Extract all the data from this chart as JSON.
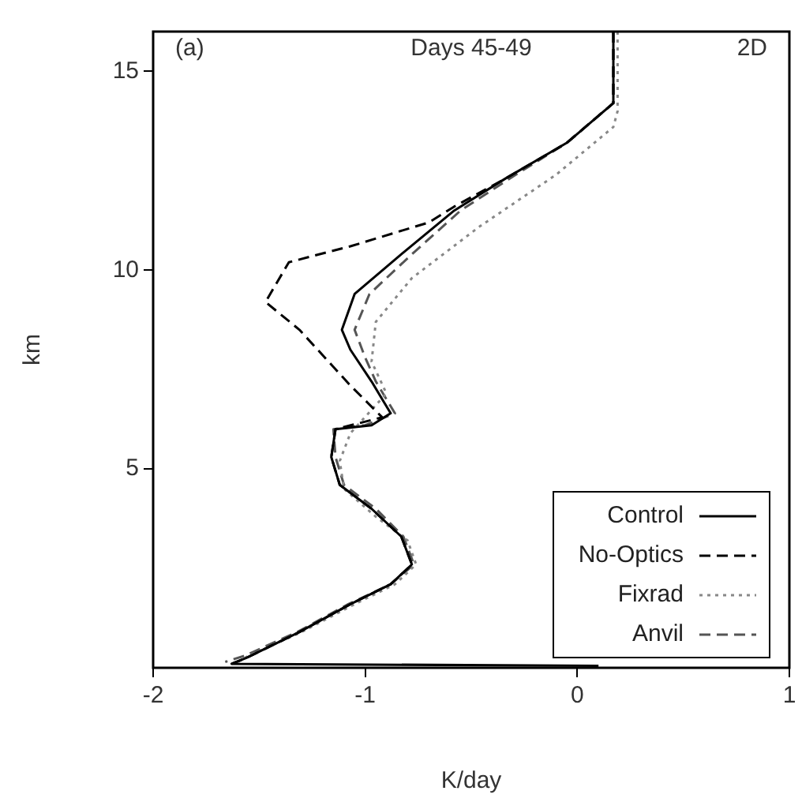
{
  "chart_data": {
    "type": "line",
    "xlabel": "K/day",
    "ylabel": "km",
    "xlim": [
      -2,
      1
    ],
    "xticks": [
      -2,
      -1,
      0,
      1
    ],
    "ylim": [
      0,
      16
    ],
    "yticks": [
      5,
      10,
      15
    ],
    "grid": false,
    "legend": "bottom right",
    "marker": "none",
    "annotations": [
      "(a)",
      "Days 45-49",
      "2D"
    ],
    "series": [
      {
        "name": "Control",
        "color": "#000000",
        "line_style": "solid",
        "x": [
          0.17,
          0.17,
          -0.05,
          -0.34,
          -0.58,
          -0.83,
          -1.05,
          -1.11,
          -1.07,
          -0.97,
          -0.88,
          -0.97,
          -1.14,
          -1.16,
          -1.12,
          -0.97,
          -0.83,
          -0.78,
          -0.88,
          -1.07,
          -1.31,
          -1.56,
          -1.63,
          0.1
        ],
        "values": [
          16,
          14.2,
          13.2,
          12.3,
          11.5,
          10.4,
          9.4,
          8.5,
          8.0,
          7.2,
          6.4,
          6.1,
          6.0,
          5.3,
          4.6,
          4.0,
          3.3,
          2.6,
          2.1,
          1.6,
          0.9,
          0.25,
          0.1,
          0.05
        ]
      },
      {
        "name": "No-Optics",
        "color": "#000000",
        "line_style": "dashed",
        "x": [
          0.17,
          0.17,
          -0.05,
          -0.34,
          -0.58,
          -0.7,
          -1.07,
          -1.36,
          -1.47,
          -1.31,
          -1.07,
          -0.92,
          -1.14,
          -1.16,
          -1.12,
          -0.97,
          -0.83,
          -0.78,
          -0.88,
          -1.07,
          -1.31,
          -1.56,
          -1.63
        ],
        "values": [
          16,
          14.2,
          13.2,
          12.3,
          11.6,
          11.2,
          10.6,
          10.2,
          9.2,
          8.5,
          7.1,
          6.3,
          6.0,
          5.3,
          4.6,
          4.0,
          3.3,
          2.6,
          2.1,
          1.6,
          0.9,
          0.25,
          0.1
        ]
      },
      {
        "name": "Fixrad",
        "color": "#888888",
        "line_style": "dotted",
        "x": [
          0.19,
          0.19,
          0.17,
          -0.1,
          -0.46,
          -0.78,
          -0.95,
          -0.97,
          -0.9,
          -1.07,
          -1.12,
          -1.1,
          -0.95,
          -0.8,
          -0.76,
          -0.86,
          -1.05,
          -1.3,
          -1.55,
          -1.6
        ],
        "values": [
          16,
          14,
          13.6,
          12.4,
          11.1,
          9.8,
          8.7,
          7.7,
          6.9,
          5.9,
          5.2,
          4.5,
          3.8,
          3.2,
          2.6,
          2.1,
          1.6,
          0.9,
          0.3,
          0.15
        ]
      },
      {
        "name": "Anvil",
        "color": "#555555",
        "line_style": "dashed",
        "x": [
          0.17,
          0.17,
          -0.05,
          -0.32,
          -0.55,
          -0.78,
          -0.98,
          -1.05,
          -1.0,
          -0.95,
          -0.86,
          -1.0,
          -1.15,
          -1.14,
          -1.1,
          -0.95,
          -0.82,
          -0.77,
          -0.88,
          -1.08,
          -1.32,
          -1.57,
          -1.66
        ],
        "values": [
          16,
          14.2,
          13.2,
          12.3,
          11.5,
          10.4,
          9.4,
          8.5,
          7.8,
          7.2,
          6.4,
          6.1,
          6.0,
          5.3,
          4.6,
          4.0,
          3.3,
          2.6,
          2.1,
          1.6,
          0.9,
          0.3,
          0.15
        ]
      }
    ]
  }
}
